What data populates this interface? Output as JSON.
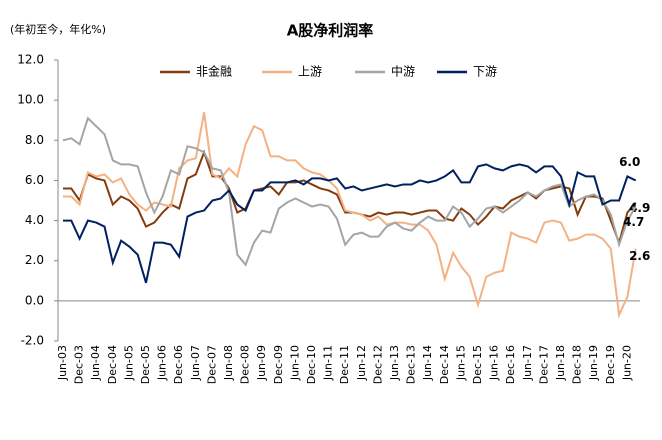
{
  "chart_data": {
    "type": "line",
    "title": "A股净利润率",
    "y_label": "(年初至今，年化%)",
    "categories": [
      "Jun-03",
      null,
      "Dec-03",
      null,
      "Jun-04",
      null,
      "Dec-04",
      null,
      "Jun-05",
      null,
      "Dec-05",
      null,
      "Jun-06",
      null,
      "Dec-06",
      null,
      "Jun-07",
      null,
      "Dec-07",
      null,
      "Jun-08",
      null,
      "Dec-08",
      null,
      "Jun-09",
      null,
      "Dec-09",
      null,
      "Jun-10",
      null,
      "Dec-10",
      null,
      "Jun-11",
      null,
      "Dec-11",
      null,
      "Jun-12",
      null,
      "Dec-12",
      null,
      "Jun-13",
      null,
      "Dec-13",
      null,
      "Jun-14",
      null,
      "Dec-14",
      null,
      "Jun-15",
      null,
      "Dec-15",
      null,
      "Jun-16",
      null,
      "Dec-16",
      null,
      "Jun-17",
      null,
      "Dec-17",
      null,
      "Jun-18",
      null,
      "Dec-18",
      null,
      "Jun-19",
      null,
      "Dec-19",
      null,
      "Jun-20",
      null
    ],
    "series": [
      {
        "name": "非金融",
        "color": "#843c0c",
        "values": [
          5.6,
          5.6,
          5.0,
          6.3,
          6.1,
          6.0,
          4.8,
          5.2,
          5.0,
          4.6,
          3.7,
          3.9,
          4.4,
          4.8,
          4.6,
          6.1,
          6.3,
          7.4,
          6.2,
          6.2,
          5.6,
          4.4,
          4.6,
          5.5,
          5.6,
          5.7,
          5.3,
          5.9,
          5.9,
          6.0,
          5.8,
          5.6,
          5.5,
          5.3,
          4.4,
          4.4,
          4.3,
          4.2,
          4.4,
          4.3,
          4.4,
          4.4,
          4.3,
          4.4,
          4.5,
          4.5,
          4.1,
          4.0,
          4.6,
          4.3,
          3.8,
          4.2,
          4.7,
          4.6,
          5.0,
          5.2,
          5.4,
          5.1,
          5.5,
          5.6,
          5.7,
          5.6,
          4.3,
          5.2,
          5.2,
          5.1,
          4.0,
          2.9,
          4.4,
          4.9
        ],
        "value_labels": [
          null,
          null,
          null,
          null,
          null,
          null,
          null,
          null,
          null,
          null,
          null,
          null,
          null,
          null,
          null,
          null,
          null,
          null,
          null,
          null,
          null,
          null,
          null,
          null,
          null,
          null,
          null,
          null,
          null,
          null,
          null,
          null,
          null,
          null,
          null,
          null,
          null,
          null,
          null,
          null,
          null,
          null,
          null,
          null,
          null,
          null,
          null,
          null,
          null,
          null,
          null,
          null,
          null,
          null,
          null,
          null,
          null,
          null,
          null,
          null,
          null,
          null,
          null,
          null,
          null,
          null,
          null,
          null,
          null,
          "4.9"
        ]
      },
      {
        "name": "上游",
        "color": "#f4b183",
        "values": [
          5.2,
          5.2,
          4.8,
          6.4,
          6.2,
          6.3,
          5.9,
          6.1,
          5.3,
          4.8,
          4.5,
          4.9,
          4.8,
          4.7,
          6.6,
          7.0,
          7.1,
          9.4,
          6.3,
          6.1,
          6.6,
          6.2,
          7.8,
          8.7,
          8.5,
          7.2,
          7.2,
          7.0,
          7.0,
          6.6,
          6.4,
          6.3,
          6.0,
          5.6,
          4.5,
          4.4,
          4.3,
          4.0,
          4.2,
          3.8,
          3.9,
          3.9,
          3.8,
          3.8,
          3.5,
          2.8,
          1.1,
          2.4,
          1.7,
          1.2,
          -0.2,
          1.2,
          1.4,
          1.5,
          3.4,
          3.2,
          3.1,
          2.9,
          3.9,
          4.0,
          3.9,
          3.0,
          3.1,
          3.3,
          3.3,
          3.1,
          2.6,
          -0.7,
          0.2,
          2.6
        ],
        "value_labels": [
          null,
          null,
          null,
          null,
          null,
          null,
          null,
          null,
          null,
          null,
          null,
          null,
          null,
          null,
          null,
          null,
          null,
          null,
          null,
          null,
          null,
          null,
          null,
          null,
          null,
          null,
          null,
          null,
          null,
          null,
          null,
          null,
          null,
          null,
          null,
          null,
          null,
          null,
          null,
          null,
          null,
          null,
          null,
          null,
          null,
          null,
          null,
          null,
          null,
          null,
          null,
          null,
          null,
          null,
          null,
          null,
          null,
          null,
          null,
          null,
          null,
          null,
          null,
          null,
          null,
          null,
          null,
          null,
          null,
          "2.6"
        ]
      },
      {
        "name": "中游",
        "color": "#a5a5a5",
        "values": [
          8.0,
          8.1,
          7.8,
          9.1,
          8.7,
          8.3,
          7.0,
          6.8,
          6.8,
          6.7,
          5.4,
          4.4,
          5.2,
          6.5,
          6.3,
          7.7,
          7.6,
          7.4,
          6.6,
          6.5,
          5.4,
          2.3,
          1.8,
          2.9,
          3.5,
          3.4,
          4.6,
          4.9,
          5.1,
          4.9,
          4.7,
          4.8,
          4.7,
          4.1,
          2.8,
          3.3,
          3.4,
          3.2,
          3.2,
          3.7,
          3.9,
          3.6,
          3.5,
          3.9,
          4.2,
          4.0,
          4.0,
          4.7,
          4.4,
          3.7,
          4.1,
          4.6,
          4.7,
          4.4,
          4.7,
          5.0,
          5.4,
          5.2,
          5.5,
          5.7,
          5.8,
          4.7,
          5.0,
          5.2,
          5.3,
          5.0,
          4.3,
          2.8,
          4.0,
          4.7
        ],
        "value_labels": [
          null,
          null,
          null,
          null,
          null,
          null,
          null,
          null,
          null,
          null,
          null,
          null,
          null,
          null,
          null,
          null,
          null,
          null,
          null,
          null,
          null,
          null,
          null,
          null,
          null,
          null,
          null,
          null,
          null,
          null,
          null,
          null,
          null,
          null,
          null,
          null,
          null,
          null,
          null,
          null,
          null,
          null,
          null,
          null,
          null,
          null,
          null,
          null,
          null,
          null,
          null,
          null,
          null,
          null,
          null,
          null,
          null,
          null,
          null,
          null,
          null,
          null,
          null,
          null,
          null,
          null,
          null,
          null,
          null,
          "4.7"
        ]
      },
      {
        "name": "下游",
        "color": "#002060",
        "values": [
          4.0,
          4.0,
          3.1,
          4.0,
          3.9,
          3.7,
          1.9,
          3.0,
          2.7,
          2.3,
          0.9,
          2.9,
          2.9,
          2.8,
          2.2,
          4.2,
          4.4,
          4.5,
          5.0,
          5.1,
          5.5,
          4.8,
          4.5,
          5.5,
          5.5,
          5.9,
          5.9,
          5.9,
          6.0,
          5.8,
          6.1,
          6.1,
          6.0,
          6.1,
          5.6,
          5.7,
          5.5,
          5.6,
          5.7,
          5.8,
          5.7,
          5.8,
          5.8,
          6.0,
          5.9,
          6.0,
          6.2,
          6.5,
          5.9,
          5.9,
          6.7,
          6.8,
          6.6,
          6.5,
          6.7,
          6.8,
          6.7,
          6.4,
          6.7,
          6.7,
          6.2,
          4.8,
          6.4,
          6.2,
          6.2,
          4.8,
          5.0,
          5.0,
          6.2,
          6.0
        ],
        "value_labels": [
          null,
          null,
          null,
          null,
          null,
          null,
          null,
          null,
          null,
          null,
          null,
          null,
          null,
          null,
          null,
          null,
          null,
          null,
          null,
          null,
          null,
          null,
          null,
          null,
          null,
          null,
          null,
          null,
          null,
          null,
          null,
          null,
          null,
          null,
          null,
          null,
          null,
          null,
          null,
          null,
          null,
          null,
          null,
          null,
          null,
          null,
          null,
          null,
          null,
          null,
          null,
          null,
          null,
          null,
          null,
          null,
          null,
          null,
          null,
          null,
          null,
          null,
          null,
          null,
          null,
          null,
          null,
          null,
          null,
          "6.0"
        ]
      }
    ],
    "ylim": [
      -2,
      12
    ],
    "yticks": [
      {
        "value": -2,
        "label": "-2.0"
      },
      {
        "value": 0,
        "label": "0.0"
      },
      {
        "value": 2,
        "label": "2.0"
      },
      {
        "value": 4,
        "label": "4.0"
      },
      {
        "value": 6,
        "label": "6.0"
      },
      {
        "value": 8,
        "label": "8.0"
      },
      {
        "value": 10,
        "label": "10.0"
      },
      {
        "value": 12,
        "label": "12.0"
      }
    ],
    "legend": "top",
    "grid": false
  }
}
